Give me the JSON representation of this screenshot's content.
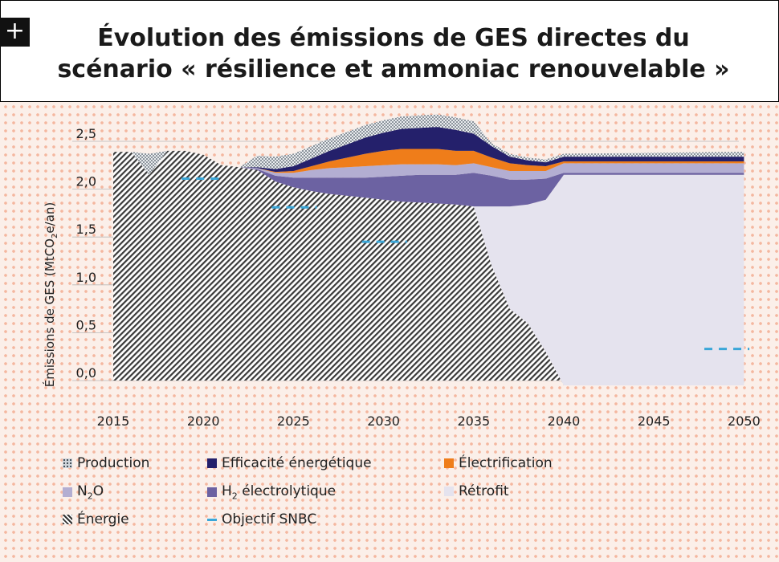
{
  "header": {
    "badge": "+",
    "title_line1": "Évolution des émissions de GES directes du",
    "title_line2": "scénario « résilience et ammoniac renouvelable »"
  },
  "colors": {
    "efficacite": "#24206b",
    "electrification": "#ef7d1a",
    "n2o": "#b3aed2",
    "h2": "#6c62a2",
    "retrofit": "#e5e3ee",
    "production": "#c9cfd6",
    "energie": "#555555",
    "snbc": "#3aa6d8"
  },
  "legend": {
    "production": "Production",
    "efficacite": "Efficacité énergétique",
    "electrification": "Électrification",
    "n2o_main": "N",
    "n2o_sub": "2",
    "n2o_tail": "O",
    "h2_main": "H",
    "h2_sub": "2",
    "h2_tail": " électrolytique",
    "retrofit": "Rétrofit",
    "energie": "Énergie",
    "snbc": "Objectif SNBC"
  },
  "chart_data": {
    "type": "area",
    "title": "Évolution des émissions de GES directes du scénario « résilience et ammoniac renouvelable »",
    "ylabel_main": "Émissions de GES (MtCO",
    "ylabel_sub": "2",
    "ylabel_tail": "e/an)",
    "xlabel": "",
    "xlim": [
      2012,
      2052
    ],
    "ylim": [
      -0.1,
      2.6
    ],
    "x_ticks": [
      2015,
      2020,
      2025,
      2030,
      2035,
      2040,
      2045,
      2050
    ],
    "y_ticks": [
      0.0,
      0.5,
      1.0,
      1.5,
      2.0,
      2.5
    ],
    "y_tick_labels": [
      "0,0",
      "0,5",
      "1,0",
      "1,5",
      "2,0",
      "2,5"
    ],
    "x": [
      2015,
      2016,
      2017,
      2018,
      2019,
      2020,
      2021,
      2022,
      2023,
      2024,
      2025,
      2026,
      2027,
      2028,
      2029,
      2030,
      2031,
      2032,
      2033,
      2034,
      2035,
      2036,
      2037,
      2038,
      2039,
      2040,
      2045,
      2050
    ],
    "series": [
      {
        "name": "Énergie",
        "key": "energie",
        "values": [
          2.39,
          2.39,
          2.15,
          2.4,
          2.4,
          2.36,
          2.25,
          2.23,
          2.2,
          2.08,
          2.02,
          1.98,
          1.95,
          1.93,
          1.91,
          1.89,
          1.87,
          1.86,
          1.85,
          1.84,
          1.82,
          1.2,
          0.75,
          0.6,
          0.3,
          -0.05,
          -0.05,
          -0.05
        ]
      },
      {
        "name": "Rétrofit",
        "key": "retrofit",
        "values": [
          0,
          0,
          0,
          0,
          0,
          0,
          0,
          0,
          0,
          0,
          0,
          0,
          0,
          0,
          0,
          0,
          0,
          0,
          0,
          0,
          0,
          0.62,
          1.07,
          1.24,
          1.59,
          2.2,
          2.2,
          2.2
        ]
      },
      {
        "name": "H2 électrolytique",
        "key": "h2",
        "values": [
          0,
          0,
          0,
          0,
          0,
          0,
          0,
          0,
          0.01,
          0.06,
          0.1,
          0.14,
          0.17,
          0.19,
          0.21,
          0.24,
          0.27,
          0.29,
          0.3,
          0.31,
          0.35,
          0.32,
          0.28,
          0.26,
          0.22,
          0.02,
          0.02,
          0.02
        ]
      },
      {
        "name": "N2O",
        "key": "n2o",
        "values": [
          0,
          0,
          0,
          0,
          0,
          0,
          0,
          0,
          0.01,
          0.03,
          0.05,
          0.08,
          0.1,
          0.11,
          0.12,
          0.12,
          0.12,
          0.11,
          0.11,
          0.1,
          0.1,
          0.09,
          0.09,
          0.09,
          0.08,
          0.1,
          0.1,
          0.1
        ]
      },
      {
        "name": "Électrification",
        "key": "electrification",
        "values": [
          0,
          0,
          0,
          0,
          0,
          0,
          0,
          0,
          0,
          0.01,
          0.02,
          0.04,
          0.07,
          0.1,
          0.13,
          0.15,
          0.16,
          0.16,
          0.16,
          0.15,
          0.13,
          0.1,
          0.08,
          0.06,
          0.05,
          0.02,
          0.02,
          0.02
        ]
      },
      {
        "name": "Efficacité énergétique",
        "key": "efficacite",
        "values": [
          0,
          0,
          0,
          0,
          0,
          0,
          0,
          0,
          0.01,
          0.03,
          0.05,
          0.08,
          0.11,
          0.14,
          0.17,
          0.19,
          0.21,
          0.22,
          0.23,
          0.22,
          0.18,
          0.12,
          0.07,
          0.05,
          0.04,
          0.05,
          0.05,
          0.05
        ]
      },
      {
        "name": "Production",
        "key": "production",
        "values": [
          0,
          0,
          0.22,
          0,
          0,
          0,
          0,
          0,
          0.12,
          0.13,
          0.13,
          0.13,
          0.13,
          0.13,
          0.13,
          0.13,
          0.13,
          0.13,
          0.13,
          0.13,
          0.13,
          0.03,
          0.03,
          0.03,
          0.03,
          0.03,
          0.04,
          0.05
        ]
      }
    ],
    "snbc": [
      {
        "x0": 2018.8,
        "x1": 2021.2,
        "y": 2.11
      },
      {
        "x0": 2028.8,
        "x1": 2031.3,
        "y": 1.45
      },
      {
        "x0": 2023.8,
        "x1": 2026.3,
        "y": 1.81
      },
      {
        "x0": 2047.8,
        "x1": 2050.3,
        "y": 0.33
      }
    ]
  }
}
